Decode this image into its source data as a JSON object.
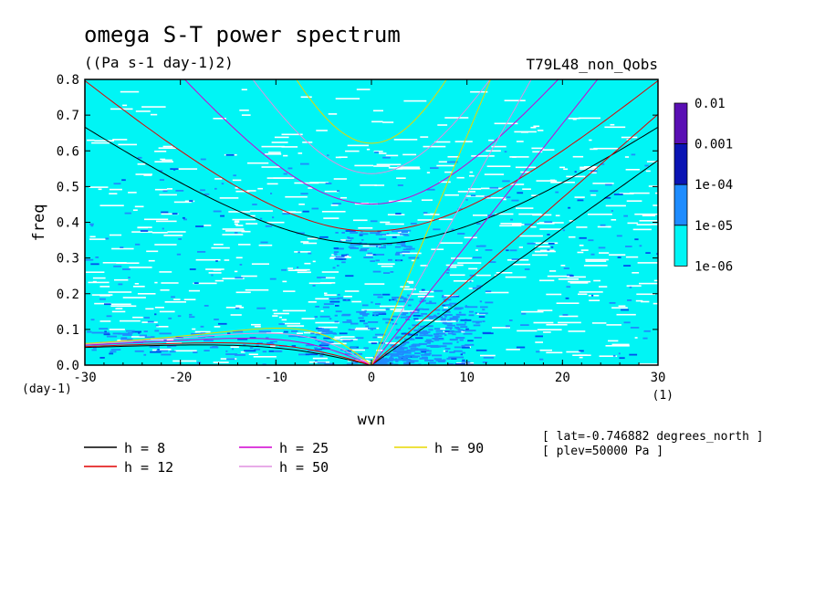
{
  "chart_data": {
    "type": "heatmap",
    "title": "omega S-T power spectrum",
    "subtitle": "((Pa s-1 day-1)2)",
    "run_label": "T79L48_non_Qobs",
    "xlabel": "wvn",
    "ylabel": "freq",
    "x_units": "(1)",
    "y_units": "(day-1)",
    "xlim": [
      -30,
      30
    ],
    "ylim": [
      0,
      0.8
    ],
    "x_ticks": [
      -30,
      -20,
      -10,
      0,
      10,
      20,
      30
    ],
    "x_tick_labels": [
      "-30",
      "-20",
      "-10",
      "0",
      "10",
      "20",
      "30"
    ],
    "y_ticks": [
      0,
      0.1,
      0.2,
      0.3,
      0.4,
      0.5,
      0.6,
      0.7,
      0.8
    ],
    "y_tick_labels": [
      "0.0",
      "0.1",
      "0.2",
      "0.3",
      "0.4",
      "0.5",
      "0.6",
      "0.7",
      "0.8"
    ],
    "colorbar": {
      "levels": [
        "0.01",
        "0.001",
        "1e-04",
        "1e-05",
        "1e-06"
      ],
      "colors": [
        "#5a0fb4",
        "#0a14b4",
        "#0050f0",
        "#1e8cff",
        "#00f5f5"
      ]
    },
    "background_color": "#00f5f5",
    "dispersion_curves": [
      {
        "h": 8,
        "label": "h =  8",
        "color": "#000000"
      },
      {
        "h": 12,
        "label": "h = 12",
        "color": "#e00000"
      },
      {
        "h": 25,
        "label": "h = 25",
        "color": "#d000d0"
      },
      {
        "h": 50,
        "label": "h = 50",
        "color": "#e090e0"
      },
      {
        "h": 90,
        "label": "h = 90",
        "color": "#e8d800"
      }
    ],
    "annotations": [
      "[ lat=-0.746882 degrees_north ]",
      "[ plev=50000 Pa ]"
    ]
  }
}
